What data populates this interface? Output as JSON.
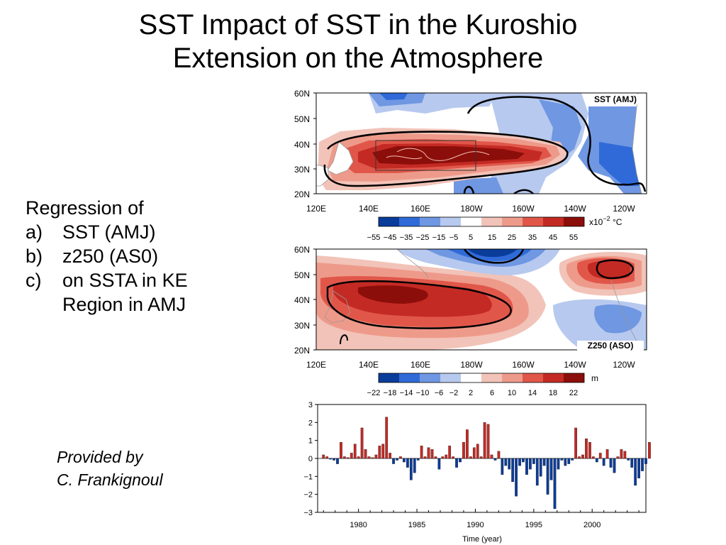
{
  "slide": {
    "title_line1": "SST Impact of SST in the Kuroshio",
    "title_line2": "Extension on the Atmosphere",
    "regression_heading": "Regression of",
    "items": [
      {
        "marker": "a)",
        "text": "SST (AMJ)"
      },
      {
        "marker": "b)",
        "text": "z250 (AS0)"
      },
      {
        "marker": "c)",
        "text": "on SSTA in KE"
      },
      {
        "marker": "",
        "text": "Region in AMJ"
      }
    ],
    "credit_line1": "Provided by",
    "credit_line2": "C. Frankignoul"
  },
  "maps": {
    "lat_labels": [
      "60N",
      "50N",
      "40N",
      "30N",
      "20N"
    ],
    "lon_labels": [
      "120E",
      "140E",
      "160E",
      "180W",
      "160W",
      "140W",
      "120W"
    ],
    "sst": {
      "panel_label": "SST (AMJ)",
      "colorbar_ticks": [
        "−55",
        "−45",
        "−35",
        "−25",
        "−15",
        "−5",
        "5",
        "15",
        "25",
        "35",
        "45",
        "55"
      ],
      "colorbar_unit": "x10",
      "colorbar_unit_exp": "−2",
      "colorbar_unit_suffix": " °C"
    },
    "z250": {
      "panel_label": "Z250 (ASO)",
      "colorbar_ticks": [
        "−22",
        "−18",
        "−14",
        "−10",
        "−6",
        "−2",
        "2",
        "6",
        "10",
        "14",
        "18",
        "22"
      ],
      "colorbar_unit": "m"
    },
    "colors": {
      "blue_dark": "#0a3c9a",
      "blue_mid": "#2f6ad8",
      "blue_light": "#6f97e2",
      "blue_pale": "#b7c9ee",
      "white": "#ffffff",
      "red_pale": "#f2c3b8",
      "red_light": "#ee9a8a",
      "red_mid": "#e0574a",
      "red_dark": "#c42a24",
      "red_deep": "#8c0e0a"
    }
  },
  "chart_data": {
    "type": "bar",
    "xlabel": "Time (year)",
    "ylim": [
      -3,
      3
    ],
    "xlim": [
      1976.5,
      2004.6
    ],
    "y_ticks": [
      "3",
      "2",
      "1",
      "0",
      "−1",
      "−2",
      "−3"
    ],
    "x_ticks": [
      1980,
      1985,
      1990,
      1995,
      2000
    ],
    "series": [
      {
        "values": [
          {
            "x": 1977.0,
            "y": 0.2
          },
          {
            "x": 1977.3,
            "y": 0.1
          },
          {
            "x": 1977.6,
            "y": -0.05
          },
          {
            "x": 1977.9,
            "y": -0.1
          },
          {
            "x": 1978.2,
            "y": -0.3
          },
          {
            "x": 1978.5,
            "y": 0.9
          },
          {
            "x": 1978.8,
            "y": 0.1
          },
          {
            "x": 1979.1,
            "y": 0.05
          },
          {
            "x": 1979.4,
            "y": 0.3
          },
          {
            "x": 1979.7,
            "y": 0.8
          },
          {
            "x": 1980.0,
            "y": 0.1
          },
          {
            "x": 1980.3,
            "y": 1.7
          },
          {
            "x": 1980.6,
            "y": 0.5
          },
          {
            "x": 1980.9,
            "y": 0.1
          },
          {
            "x": 1981.2,
            "y": 0.05
          },
          {
            "x": 1981.5,
            "y": 0.2
          },
          {
            "x": 1981.8,
            "y": 0.7
          },
          {
            "x": 1982.1,
            "y": 0.8
          },
          {
            "x": 1982.4,
            "y": 2.3
          },
          {
            "x": 1982.7,
            "y": 0.3
          },
          {
            "x": 1983.0,
            "y": -0.3
          },
          {
            "x": 1983.3,
            "y": -0.1
          },
          {
            "x": 1983.6,
            "y": 0.1
          },
          {
            "x": 1983.9,
            "y": -0.2
          },
          {
            "x": 1984.2,
            "y": -0.5
          },
          {
            "x": 1984.5,
            "y": -1.2
          },
          {
            "x": 1984.8,
            "y": -0.8
          },
          {
            "x": 1985.1,
            "y": -0.1
          },
          {
            "x": 1985.4,
            "y": 0.7
          },
          {
            "x": 1985.7,
            "y": 0.1
          },
          {
            "x": 1986.0,
            "y": 0.6
          },
          {
            "x": 1986.3,
            "y": 0.5
          },
          {
            "x": 1986.6,
            "y": 0.1
          },
          {
            "x": 1986.9,
            "y": -0.6
          },
          {
            "x": 1987.2,
            "y": 0.1
          },
          {
            "x": 1987.5,
            "y": 0.2
          },
          {
            "x": 1987.8,
            "y": 0.7
          },
          {
            "x": 1988.1,
            "y": 0.1
          },
          {
            "x": 1988.4,
            "y": -0.5
          },
          {
            "x": 1988.7,
            "y": -0.2
          },
          {
            "x": 1989.0,
            "y": 0.9
          },
          {
            "x": 1989.3,
            "y": 1.6
          },
          {
            "x": 1989.6,
            "y": 0.1
          },
          {
            "x": 1989.9,
            "y": 0.6
          },
          {
            "x": 1990.2,
            "y": 0.8
          },
          {
            "x": 1990.5,
            "y": 0.1
          },
          {
            "x": 1990.8,
            "y": 2.0
          },
          {
            "x": 1991.1,
            "y": 1.9
          },
          {
            "x": 1991.4,
            "y": 0.2
          },
          {
            "x": 1991.7,
            "y": -0.1
          },
          {
            "x": 1992.0,
            "y": 0.4
          },
          {
            "x": 1992.3,
            "y": -0.9
          },
          {
            "x": 1992.6,
            "y": -0.4
          },
          {
            "x": 1992.9,
            "y": -0.6
          },
          {
            "x": 1993.2,
            "y": -1.3
          },
          {
            "x": 1993.5,
            "y": -2.1
          },
          {
            "x": 1993.8,
            "y": -0.4
          },
          {
            "x": 1994.1,
            "y": -0.2
          },
          {
            "x": 1994.4,
            "y": -0.9
          },
          {
            "x": 1994.7,
            "y": -0.6
          },
          {
            "x": 1995.0,
            "y": -0.3
          },
          {
            "x": 1995.3,
            "y": -1.5
          },
          {
            "x": 1995.6,
            "y": -1.0
          },
          {
            "x": 1995.9,
            "y": -0.4
          },
          {
            "x": 1996.2,
            "y": -2.0
          },
          {
            "x": 1996.5,
            "y": -1.2
          },
          {
            "x": 1996.8,
            "y": -2.8
          },
          {
            "x": 1997.1,
            "y": -0.6
          },
          {
            "x": 1997.4,
            "y": -0.1
          },
          {
            "x": 1997.7,
            "y": -0.4
          },
          {
            "x": 1998.0,
            "y": -0.3
          },
          {
            "x": 1998.3,
            "y": -0.1
          },
          {
            "x": 1998.6,
            "y": 1.7
          },
          {
            "x": 1998.9,
            "y": 0.1
          },
          {
            "x": 1999.2,
            "y": 0.2
          },
          {
            "x": 1999.5,
            "y": 1.1
          },
          {
            "x": 1999.8,
            "y": 0.9
          },
          {
            "x": 2000.1,
            "y": 0.1
          },
          {
            "x": 2000.4,
            "y": -0.2
          },
          {
            "x": 2000.7,
            "y": 0.3
          },
          {
            "x": 2001.0,
            "y": -0.4
          },
          {
            "x": 2001.3,
            "y": 0.5
          },
          {
            "x": 2001.6,
            "y": -0.5
          },
          {
            "x": 2001.9,
            "y": -0.8
          },
          {
            "x": 2002.2,
            "y": 0.1
          },
          {
            "x": 2002.5,
            "y": 0.5
          },
          {
            "x": 2002.8,
            "y": 0.4
          },
          {
            "x": 2003.1,
            "y": -0.1
          },
          {
            "x": 2003.4,
            "y": -0.5
          },
          {
            "x": 2003.7,
            "y": -1.5
          },
          {
            "x": 2004.0,
            "y": -1.1
          },
          {
            "x": 2004.3,
            "y": -0.7
          },
          {
            "x": 2004.6,
            "y": -0.3
          },
          {
            "x": 2004.9,
            "y": 0.9
          }
        ]
      }
    ]
  }
}
